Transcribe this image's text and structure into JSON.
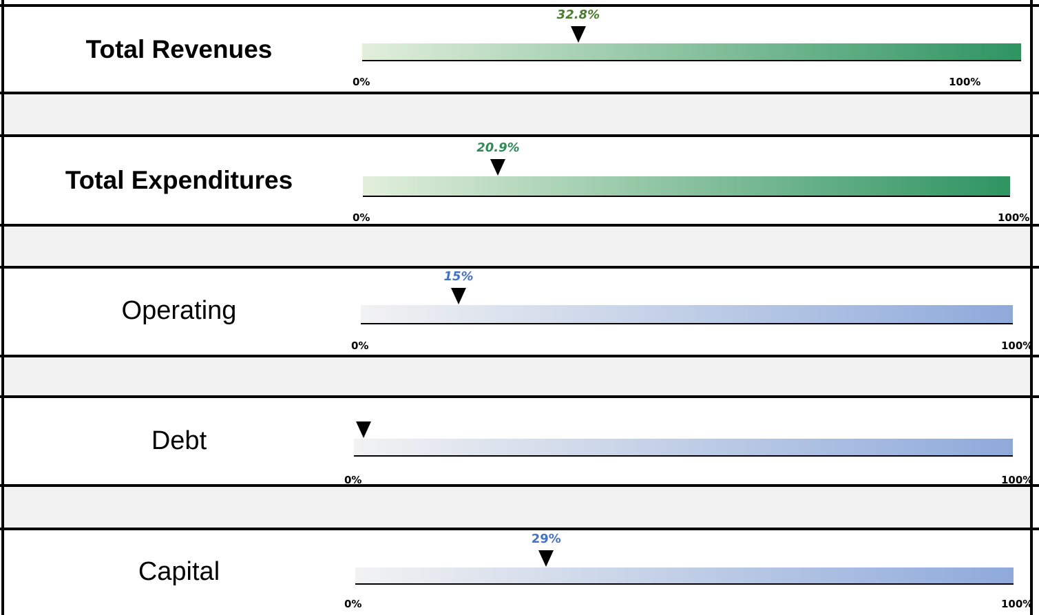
{
  "chart_data": {
    "type": "bullet",
    "axis": {
      "min_label": "0%",
      "max_label": "100%",
      "range": [
        0,
        100
      ]
    },
    "rows": [
      {
        "label": "Total Revenues",
        "value": 32.8,
        "value_label": "32.8%",
        "label_style": "bold",
        "value_label_italic": true,
        "bar_colors": [
          "#e2efda",
          "#2e9461"
        ],
        "value_label_color": "#4b7d2f"
      },
      {
        "label": "Total Expenditures",
        "value": 20.9,
        "value_label": "20.9%",
        "label_style": "bold",
        "value_label_italic": true,
        "bar_colors": [
          "#e2efda",
          "#2e9461"
        ],
        "value_label_color": "#2e8b57"
      },
      {
        "label": "Operating",
        "value": 15,
        "value_label": "15%",
        "label_style": "regular",
        "value_label_italic": true,
        "bar_colors": [
          "#f2f2f2",
          "#8eaadb"
        ],
        "value_label_color": "#4472c4"
      },
      {
        "label": "Debt",
        "value": 0,
        "value_label": "",
        "label_style": "regular",
        "value_label_italic": false,
        "bar_colors": [
          "#f2f2f2",
          "#8eaadb"
        ],
        "value_label_color": "#4472c4"
      },
      {
        "label": "Capital",
        "value": 29,
        "value_label": "29%",
        "label_style": "regular",
        "value_label_italic": false,
        "bar_colors": [
          "#f2f2f2",
          "#8eaadb"
        ],
        "value_label_color": "#4472c4"
      }
    ]
  }
}
